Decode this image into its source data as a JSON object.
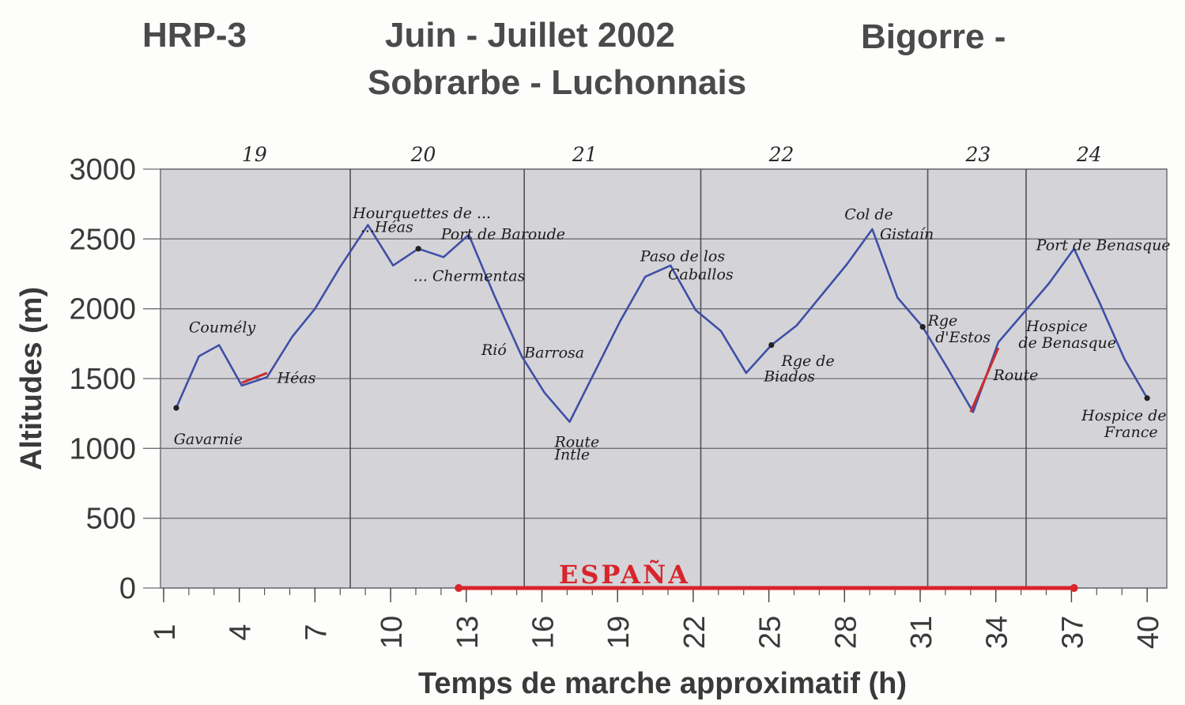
{
  "header": {
    "code": "HRP-3",
    "dates": "Juin - Juillet 2002",
    "region_line1": "Bigorre -",
    "region_line2": "Sobrarbe - Luchonnais"
  },
  "chart_data": {
    "type": "line",
    "xlabel": "Temps de marche approximatif (h)",
    "ylabel": "Altitudes (m)",
    "xlim": [
      1,
      40
    ],
    "ylim": [
      0,
      3000
    ],
    "x_ticks": [
      1,
      4,
      7,
      10,
      13,
      16,
      19,
      22,
      25,
      28,
      31,
      34,
      37,
      40
    ],
    "y_ticks": [
      0,
      500,
      1000,
      1500,
      2000,
      2500,
      3000
    ],
    "grid": true,
    "day_dividers": [
      8.4,
      15.3,
      22.3,
      31.3,
      35.2
    ],
    "day_labels": [
      {
        "label": "19",
        "x": 4.6
      },
      {
        "label": "20",
        "x": 11.3
      },
      {
        "label": "21",
        "x": 17.7
      },
      {
        "label": "22",
        "x": 25.5
      },
      {
        "label": "23",
        "x": 33.3
      },
      {
        "label": "24",
        "x": 37.7
      }
    ],
    "series": [
      {
        "color": "#3f4fa6",
        "points": [
          [
            1.5,
            1290
          ],
          [
            2.4,
            1660
          ],
          [
            3.2,
            1740
          ],
          [
            4.1,
            1450
          ],
          [
            5.1,
            1510
          ],
          [
            6.1,
            1800
          ],
          [
            7.0,
            2000
          ],
          [
            8.0,
            2300
          ],
          [
            9.1,
            2600
          ],
          [
            10.1,
            2310
          ],
          [
            11.1,
            2430
          ],
          [
            12.1,
            2370
          ],
          [
            13.1,
            2530
          ],
          [
            14.1,
            2100
          ],
          [
            15.2,
            1660
          ],
          [
            16.1,
            1400
          ],
          [
            17.1,
            1190
          ],
          [
            18.1,
            1550
          ],
          [
            19.1,
            1910
          ],
          [
            20.1,
            2230
          ],
          [
            21.1,
            2310
          ],
          [
            22.1,
            1990
          ],
          [
            23.1,
            1840
          ],
          [
            24.1,
            1540
          ],
          [
            25.1,
            1740
          ],
          [
            26.1,
            1880
          ],
          [
            27.1,
            2100
          ],
          [
            28.1,
            2320
          ],
          [
            29.1,
            2570
          ],
          [
            30.1,
            2080
          ],
          [
            31.1,
            1870
          ],
          [
            32.1,
            1570
          ],
          [
            33.1,
            1260
          ],
          [
            34.1,
            1760
          ],
          [
            35.1,
            1970
          ],
          [
            36.1,
            2180
          ],
          [
            37.1,
            2430
          ],
          [
            38.1,
            2050
          ],
          [
            39.1,
            1640
          ],
          [
            40.0,
            1360
          ]
        ]
      }
    ],
    "road_segments": [
      {
        "color": "#c92d2d",
        "points": [
          [
            4.1,
            1470
          ],
          [
            5.1,
            1540
          ]
        ]
      },
      {
        "color": "#c92d2d",
        "points": [
          [
            33.0,
            1260
          ],
          [
            34.1,
            1720
          ]
        ]
      }
    ],
    "espana": {
      "label": "ESPAÑA",
      "from": 12.7,
      "to": 37.1,
      "color": "#d9242a"
    },
    "annotations": [
      {
        "text": "Gavarnie",
        "x": 1.4,
        "y": 1030
      },
      {
        "text": "Coumély",
        "x": 2.0,
        "y": 1830
      },
      {
        "text": "Héas",
        "x": 5.5,
        "y": 1470
      },
      {
        "text": "Hourquettes de ...",
        "x": 8.5,
        "y": 2650
      },
      {
        "text": "...Héas",
        "x": 8.8,
        "y": 2550
      },
      {
        "text": "Port de Baroude",
        "x": 12.0,
        "y": 2500
      },
      {
        "text": "... Chermentas",
        "x": 10.9,
        "y": 2200
      },
      {
        "text": "Rió",
        "x": 13.6,
        "y": 1670
      },
      {
        "text": "Barrosa",
        "x": 15.3,
        "y": 1650
      },
      {
        "text": "Route",
        "x": 16.5,
        "y": 1010
      },
      {
        "text": "Intle",
        "x": 16.5,
        "y": 920
      },
      {
        "text": "Paso de los",
        "x": 19.9,
        "y": 2340
      },
      {
        "text": "Caballos",
        "x": 21.0,
        "y": 2210
      },
      {
        "text": "Rge de",
        "x": 25.5,
        "y": 1590
      },
      {
        "text": "Biados",
        "x": 24.8,
        "y": 1480
      },
      {
        "text": "Col de",
        "x": 28.0,
        "y": 2640
      },
      {
        "text": "Gistaín",
        "x": 29.4,
        "y": 2500
      },
      {
        "text": "Rge",
        "x": 31.3,
        "y": 1880
      },
      {
        "text": "d'Estos",
        "x": 31.6,
        "y": 1760
      },
      {
        "text": "Hospice",
        "x": 35.2,
        "y": 1840
      },
      {
        "text": "de Benasque",
        "x": 34.9,
        "y": 1720
      },
      {
        "text": "Route",
        "x": 33.9,
        "y": 1490
      },
      {
        "text": "Port de Benasque",
        "x": 35.6,
        "y": 2420
      },
      {
        "text": "Hospice de",
        "x": 37.4,
        "y": 1200
      },
      {
        "text": "France",
        "x": 38.3,
        "y": 1080
      }
    ],
    "markers": [
      [
        1.5,
        1290
      ],
      [
        25.1,
        1740
      ],
      [
        31.1,
        1870
      ],
      [
        40.0,
        1360
      ],
      [
        11.1,
        2430
      ]
    ]
  }
}
